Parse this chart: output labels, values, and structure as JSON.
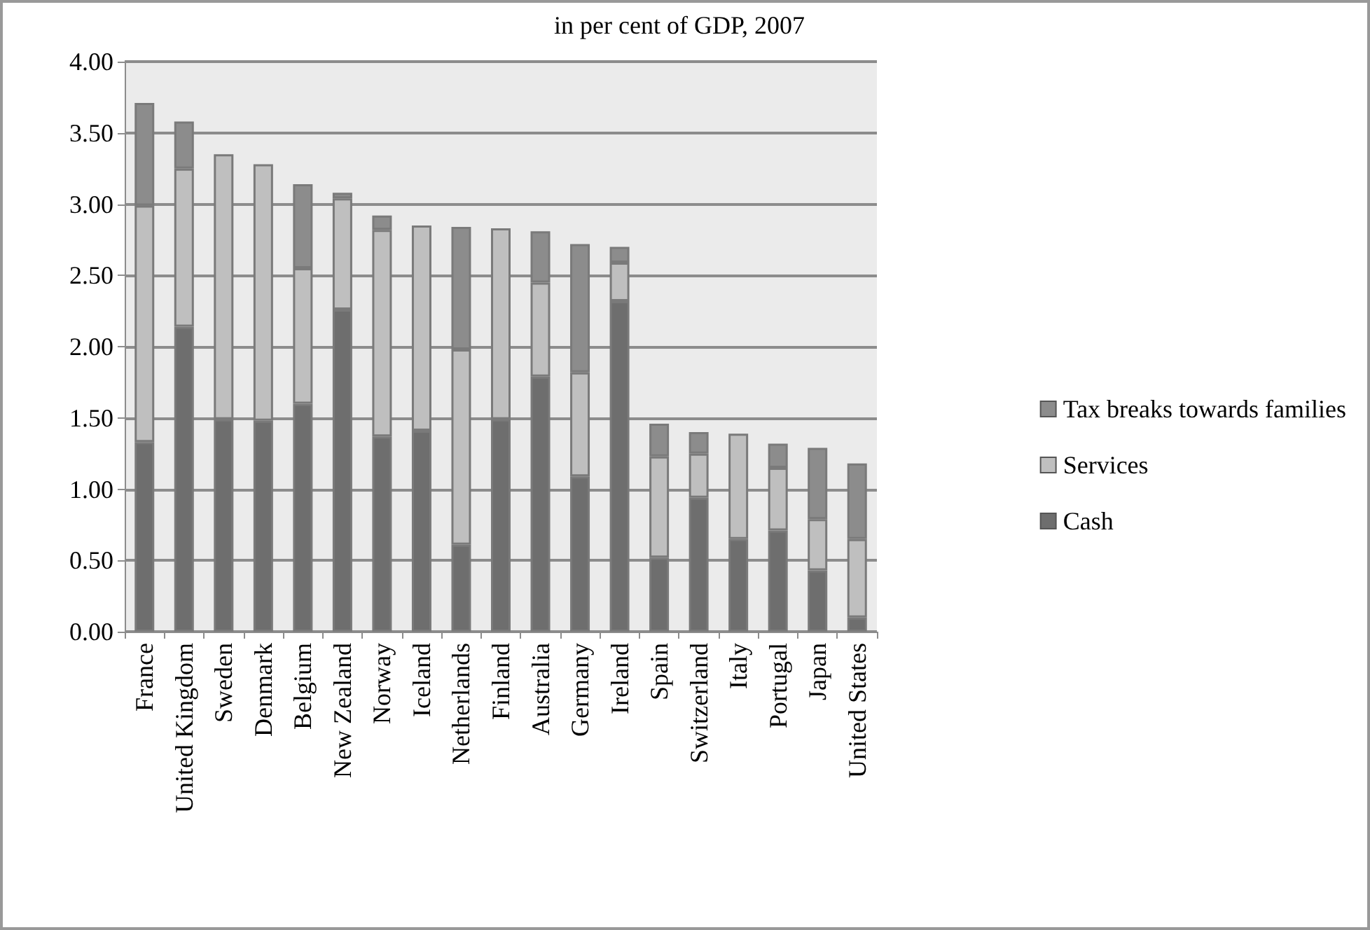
{
  "chart_data": {
    "type": "bar",
    "title": "in per cent of GDP, 2007",
    "stacked": true,
    "legend": "right",
    "grid": "y",
    "categories": [
      "France",
      "United Kingdom",
      "Sweden",
      "Denmark",
      "Belgium",
      "New Zealand",
      "Norway",
      "Iceland",
      "Netherlands",
      "Finland",
      "Australia",
      "Germany",
      "Ireland",
      "Spain",
      "Switzerland",
      "Italy",
      "Portugal",
      "Japan",
      "United States"
    ],
    "ylim": [
      0,
      4
    ],
    "yticks": [
      {
        "value": 0,
        "label": "0.00"
      },
      {
        "value": 0.5,
        "label": "0.50"
      },
      {
        "value": 1,
        "label": "1.00"
      },
      {
        "value": 1.5,
        "label": "1.50"
      },
      {
        "value": 2,
        "label": "2.00"
      },
      {
        "value": 2.5,
        "label": "2.50"
      },
      {
        "value": 3,
        "label": "3.00"
      },
      {
        "value": 3.5,
        "label": "3.50"
      },
      {
        "value": 4,
        "label": "4.00"
      }
    ],
    "series": [
      {
        "name": "Cash",
        "color": "#6e6e6e",
        "values": [
          1.33,
          2.14,
          1.49,
          1.48,
          1.6,
          2.26,
          1.37,
          1.41,
          0.61,
          1.49,
          1.79,
          1.09,
          2.32,
          0.52,
          0.94,
          0.65,
          0.71,
          0.43,
          0.1
        ]
      },
      {
        "name": "Services",
        "color": "#bfbfbf",
        "values": [
          1.66,
          1.11,
          1.86,
          1.8,
          0.95,
          0.78,
          1.45,
          1.44,
          1.37,
          1.34,
          0.66,
          0.73,
          0.27,
          0.71,
          0.31,
          0.74,
          0.44,
          0.36,
          0.55
        ]
      },
      {
        "name": "Tax breaks towards families",
        "color": "#8c8c8c",
        "values": [
          0.72,
          0.33,
          0,
          0,
          0.59,
          0.04,
          0.1,
          0,
          0.86,
          0,
          0.36,
          0.9,
          0.11,
          0.23,
          0.15,
          0,
          0.17,
          0.5,
          0.53
        ]
      }
    ]
  }
}
